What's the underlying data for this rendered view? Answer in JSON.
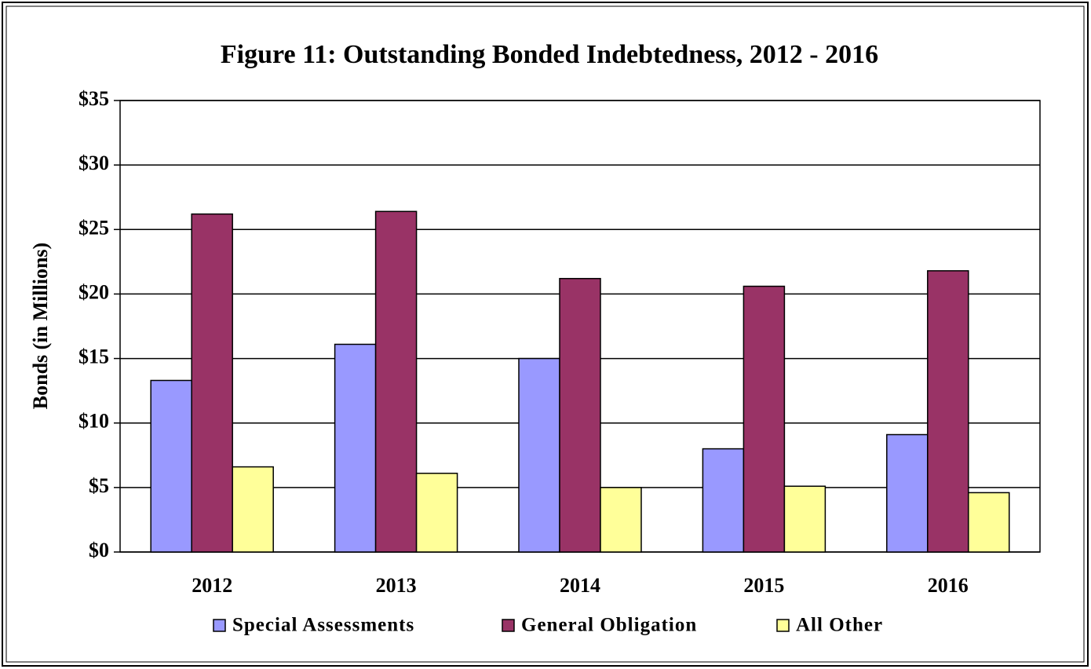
{
  "chart_data": {
    "type": "bar",
    "title": "Figure 11:  Outstanding Bonded Indebtedness, 2012 - 2016",
    "y_label": "Bonds (in Millions)",
    "categories": [
      "2012",
      "2013",
      "2014",
      "2015",
      "2016"
    ],
    "series": [
      {
        "name": "Special Assessments",
        "color": "#9999ff",
        "values": [
          13.3,
          16.1,
          15.0,
          8.0,
          9.1
        ]
      },
      {
        "name": "General Obligation",
        "color": "#993366",
        "values": [
          26.2,
          26.4,
          21.2,
          20.6,
          21.8
        ]
      },
      {
        "name": "All Other",
        "color": "#ffff99",
        "values": [
          6.6,
          6.1,
          5.0,
          5.1,
          4.6
        ]
      }
    ],
    "ylim": [
      0,
      35
    ],
    "yticks": [
      {
        "value": 0,
        "label": "$0"
      },
      {
        "value": 5,
        "label": "$5"
      },
      {
        "value": 10,
        "label": "$10"
      },
      {
        "value": 15,
        "label": "$15"
      },
      {
        "value": 20,
        "label": "$20"
      },
      {
        "value": 25,
        "label": "$25"
      },
      {
        "value": 30,
        "label": "$30"
      },
      {
        "value": 35,
        "label": "$35"
      }
    ],
    "grid": true,
    "legend": "bottom"
  }
}
